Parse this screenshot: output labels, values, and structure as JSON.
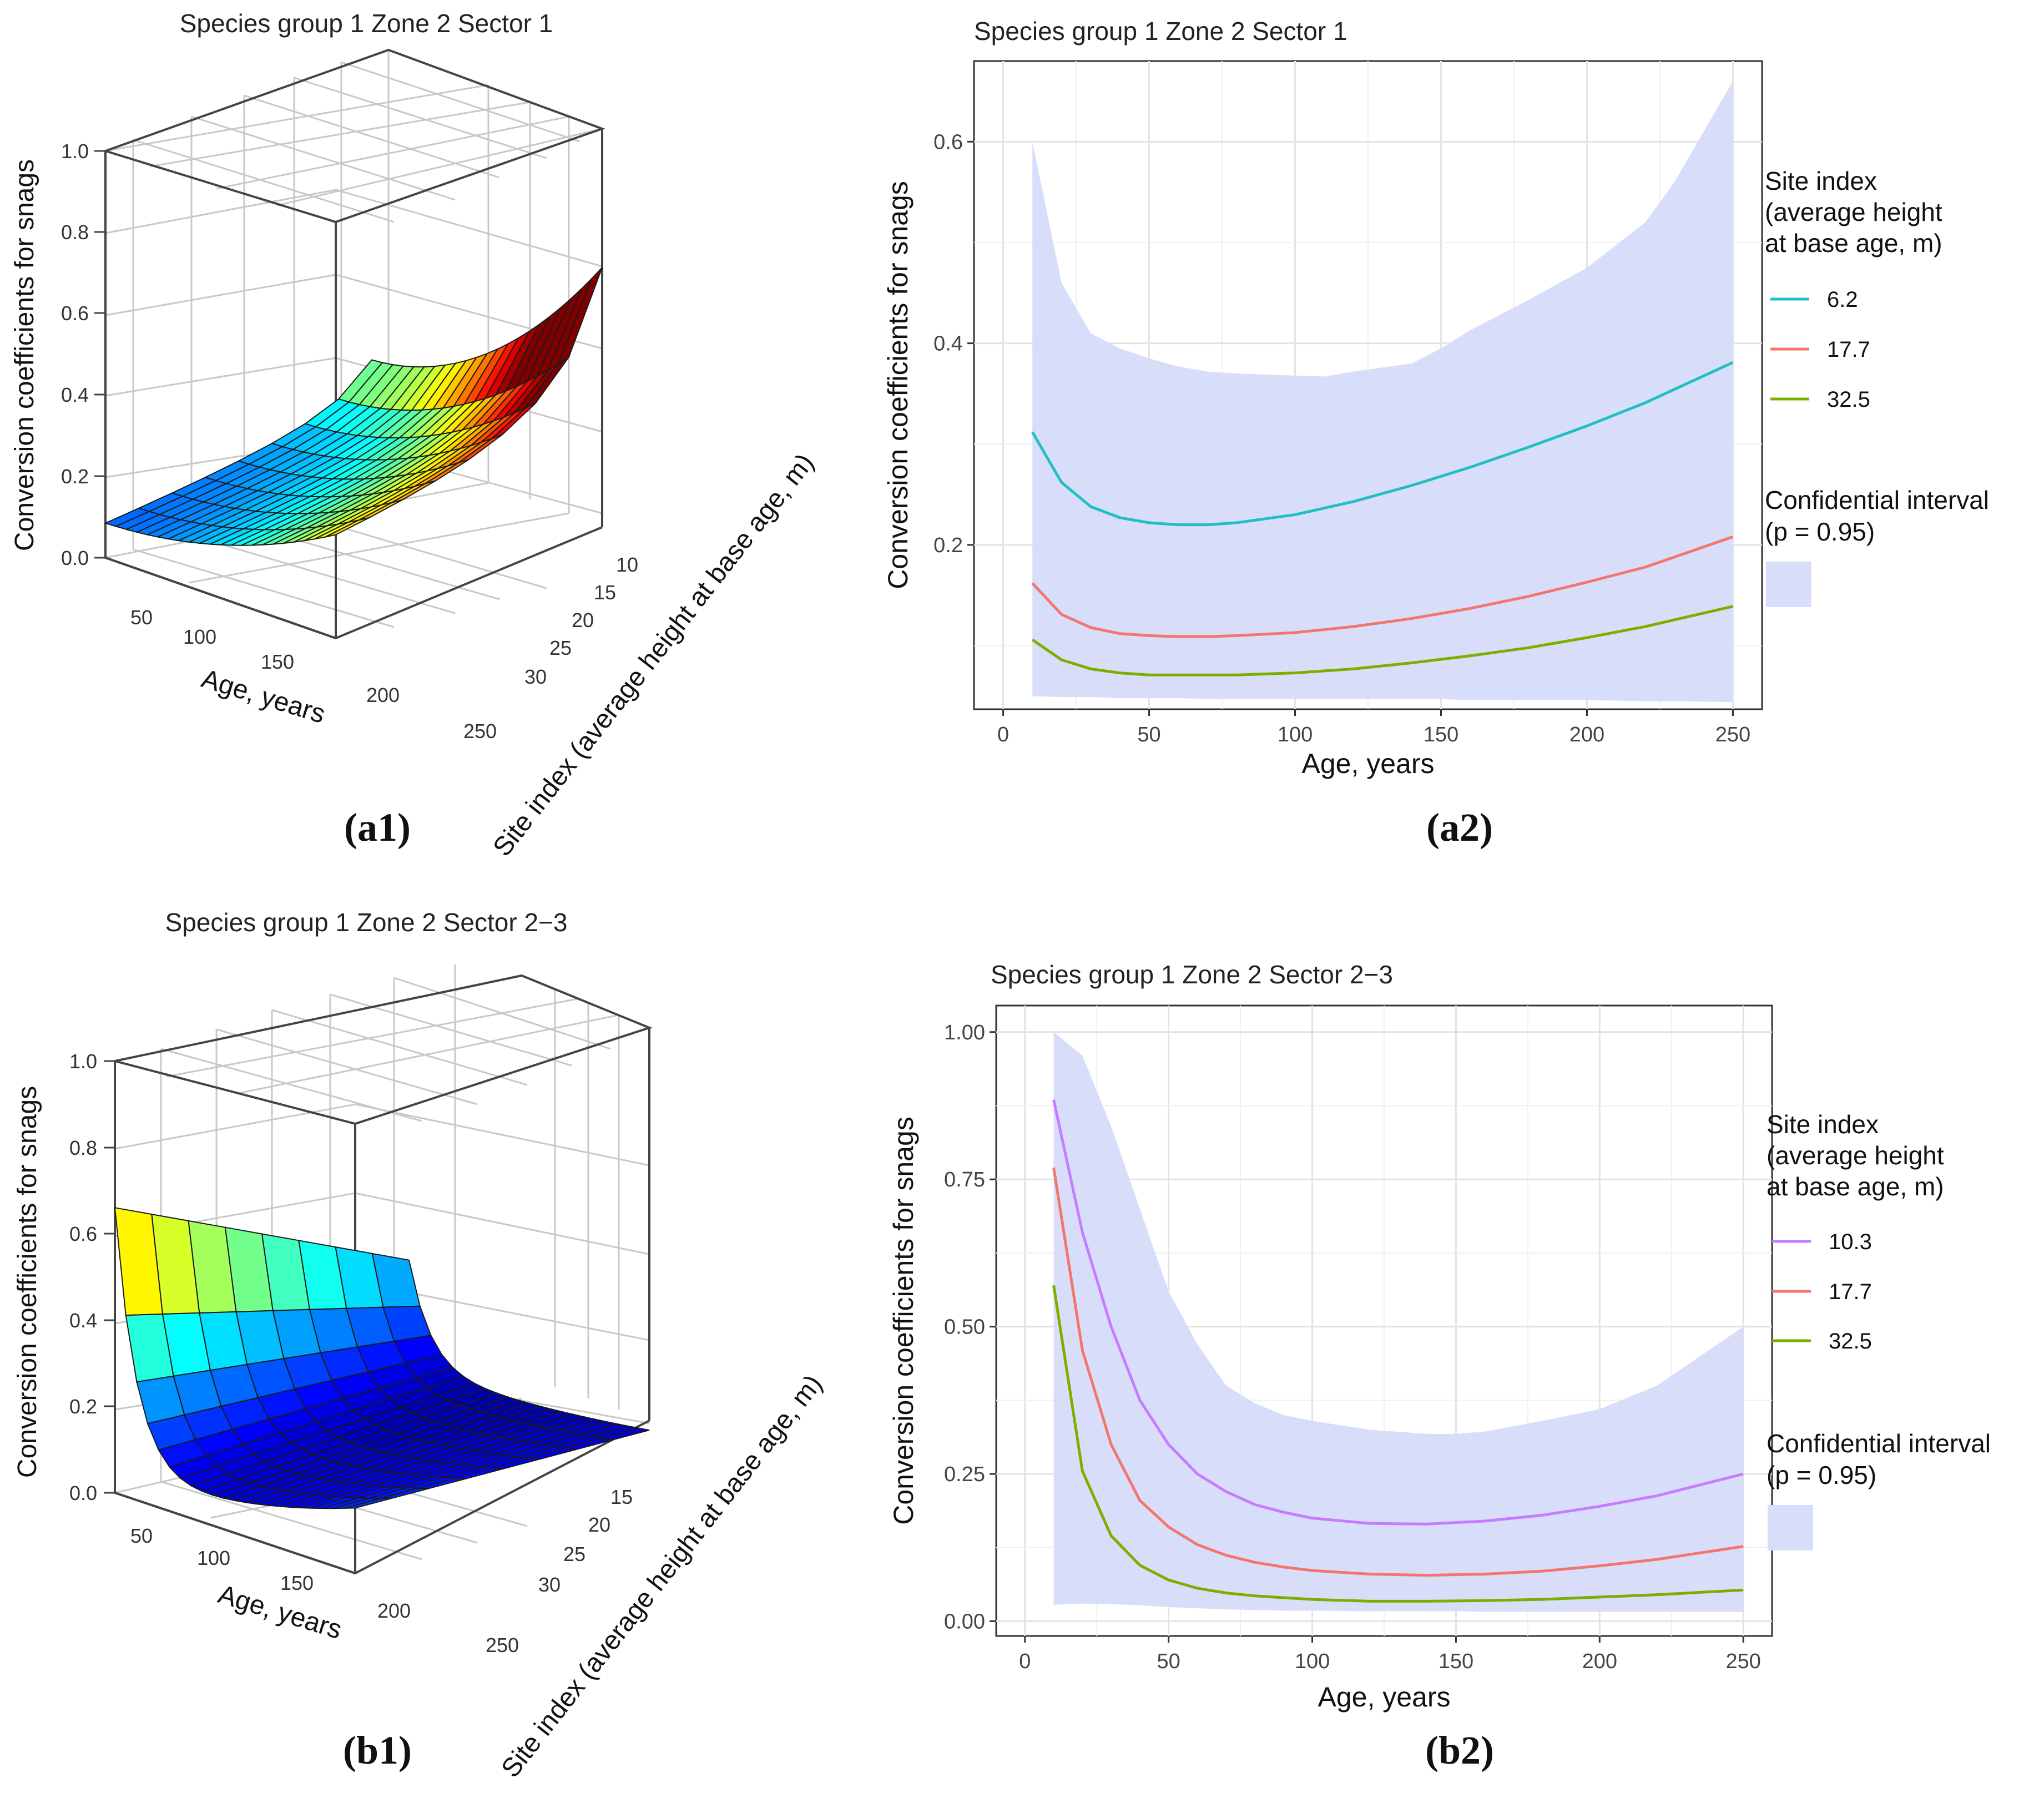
{
  "chart_data": [
    {
      "id": "a1",
      "type": "surface3d",
      "panel_label": "a1",
      "title": "Species group 1  Zone 2  Sector 1",
      "zlabel": "Conversion coefficients for snags",
      "xlabel": "Age, years",
      "ylabel": "Site index (average height at base age, m)",
      "x_ticks": [
        "50",
        "100",
        "150",
        "200",
        "250"
      ],
      "y_ticks": [
        "10",
        "15",
        "20",
        "25",
        "30"
      ],
      "z_ticks": [
        "0.0",
        "0.2",
        "0.4",
        "0.6",
        "0.8",
        "1.0"
      ],
      "zlim": [
        0,
        1
      ]
    },
    {
      "id": "a2",
      "type": "line",
      "panel_label": "a2",
      "title": "Species group 1   Zone 2  Sector 1",
      "xlabel": "Age, years",
      "ylabel": "Conversion coefficients for snags",
      "xlim": [
        -10,
        260
      ],
      "ylim": [
        0.037,
        0.68
      ],
      "x_ticks": [
        "0",
        "50",
        "100",
        "150",
        "200",
        "250"
      ],
      "y_ticks": [
        "0.2",
        "0.4",
        "0.6"
      ],
      "legend_title": [
        "Site index",
        "(average height",
        "at base age, m)"
      ],
      "ci_title": [
        "Confidential interval"
      ],
      "ci_p": "(p = 0.95)",
      "legend_position": "right",
      "grid": true,
      "x": [
        10,
        20,
        30,
        40,
        50,
        60,
        70,
        80,
        100,
        120,
        140,
        160,
        180,
        200,
        220,
        250
      ],
      "series": [
        {
          "name": "6.2",
          "color": "#1fbfc4",
          "values": [
            0.312,
            0.262,
            0.238,
            0.227,
            0.222,
            0.22,
            0.22,
            0.222,
            0.23,
            0.243,
            0.259,
            0.277,
            0.297,
            0.318,
            0.341,
            0.381
          ]
        },
        {
          "name": "17.7",
          "color": "#f2766e",
          "values": [
            0.162,
            0.131,
            0.118,
            0.112,
            0.11,
            0.109,
            0.109,
            0.11,
            0.113,
            0.119,
            0.127,
            0.137,
            0.149,
            0.163,
            0.178,
            0.208
          ]
        },
        {
          "name": "32.5",
          "color": "#7cae00",
          "values": [
            0.106,
            0.086,
            0.077,
            0.073,
            0.071,
            0.071,
            0.071,
            0.071,
            0.073,
            0.077,
            0.083,
            0.09,
            0.098,
            0.108,
            0.119,
            0.139
          ]
        }
      ],
      "ci": {
        "x": [
          10,
          20,
          30,
          40,
          50,
          60,
          70,
          80,
          100,
          110,
          120,
          140,
          150,
          160,
          180,
          200,
          220,
          230,
          250
        ],
        "upper": [
          0.6,
          0.46,
          0.41,
          0.395,
          0.385,
          0.377,
          0.372,
          0.37,
          0.368,
          0.367,
          0.372,
          0.38,
          0.395,
          0.413,
          0.443,
          0.475,
          0.52,
          0.56,
          0.66
        ],
        "lower": [
          0.05,
          0.049,
          0.049,
          0.048,
          0.048,
          0.048,
          0.047,
          0.047,
          0.047,
          0.047,
          0.047,
          0.047,
          0.047,
          0.046,
          0.046,
          0.046,
          0.045,
          0.045,
          0.044
        ],
        "color": "#d8defa"
      }
    },
    {
      "id": "b1",
      "type": "surface3d",
      "panel_label": "b1",
      "title": "Species group 1  Zone 2  Sector 2−3",
      "zlabel": "Conversion coefficients for snags",
      "xlabel": "Age, years",
      "ylabel": "Site index (average height at base age, m)",
      "x_ticks": [
        "50",
        "100",
        "150",
        "200",
        "250"
      ],
      "y_ticks": [
        "15",
        "20",
        "25",
        "30"
      ],
      "z_ticks": [
        "0.0",
        "0.2",
        "0.4",
        "0.6",
        "0.8",
        "1.0"
      ],
      "zlim": [
        0,
        1
      ]
    },
    {
      "id": "b2",
      "type": "line",
      "panel_label": "b2",
      "title": "Species group 1   Zone 2  Sector 2−3",
      "xlabel": "Age, years",
      "ylabel": "Conversion coefficients for snags",
      "xlim": [
        -10,
        260
      ],
      "ylim": [
        -0.025,
        1.045
      ],
      "x_ticks": [
        "0",
        "50",
        "100",
        "150",
        "200",
        "250"
      ],
      "y_ticks": [
        "0.00",
        "0.25",
        "0.50",
        "0.75",
        "1.00"
      ],
      "legend_title": [
        "Site index",
        "(average height",
        "at base age, m)"
      ],
      "ci_title": [
        "Confidential interval"
      ],
      "ci_p": "(p = 0.95)",
      "legend_position": "right",
      "grid": true,
      "x": [
        10,
        20,
        30,
        40,
        50,
        60,
        70,
        80,
        90,
        100,
        120,
        140,
        160,
        180,
        200,
        220,
        250
      ],
      "series": [
        {
          "name": "10.3",
          "color": "#c77cff",
          "values": [
            0.885,
            0.66,
            0.5,
            0.375,
            0.3,
            0.25,
            0.22,
            0.198,
            0.185,
            0.175,
            0.166,
            0.165,
            0.17,
            0.18,
            0.195,
            0.213,
            0.25
          ]
        },
        {
          "name": "17.7",
          "color": "#f2766e",
          "values": [
            0.77,
            0.46,
            0.3,
            0.205,
            0.16,
            0.13,
            0.112,
            0.1,
            0.092,
            0.086,
            0.08,
            0.078,
            0.08,
            0.085,
            0.094,
            0.105,
            0.127
          ]
        },
        {
          "name": "32.5",
          "color": "#7cae00",
          "values": [
            0.57,
            0.255,
            0.145,
            0.095,
            0.07,
            0.056,
            0.048,
            0.043,
            0.04,
            0.037,
            0.034,
            0.034,
            0.035,
            0.037,
            0.041,
            0.045,
            0.053
          ]
        }
      ],
      "ci": {
        "x": [
          10,
          20,
          30,
          40,
          50,
          60,
          70,
          80,
          90,
          100,
          120,
          140,
          150,
          160,
          180,
          200,
          220,
          250
        ],
        "upper": [
          1.0,
          0.96,
          0.84,
          0.7,
          0.56,
          0.47,
          0.4,
          0.37,
          0.35,
          0.34,
          0.325,
          0.318,
          0.318,
          0.322,
          0.34,
          0.36,
          0.4,
          0.5
        ],
        "lower": [
          0.028,
          0.03,
          0.029,
          0.027,
          0.024,
          0.022,
          0.02,
          0.019,
          0.018,
          0.018,
          0.017,
          0.017,
          0.017,
          0.016,
          0.016,
          0.016,
          0.016,
          0.016
        ],
        "color": "#d8defa"
      }
    }
  ]
}
